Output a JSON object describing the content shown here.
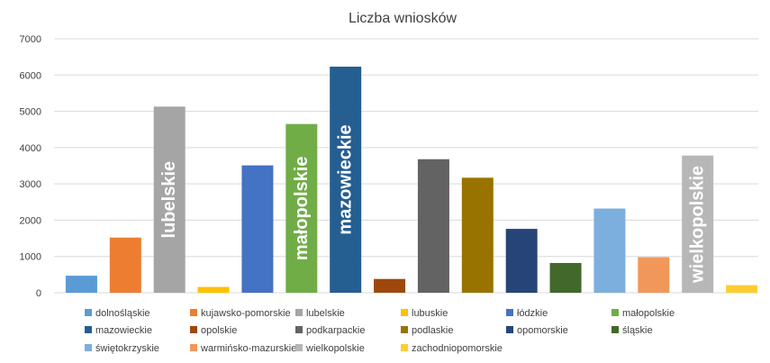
{
  "chart_data": {
    "type": "bar",
    "title": "Liczba wniosków",
    "xlabel": "",
    "ylabel": "",
    "ylim": [
      0,
      7000
    ],
    "yticks": [
      0,
      1000,
      2000,
      3000,
      4000,
      5000,
      6000,
      7000
    ],
    "grid": true,
    "legend_position": "bottom",
    "categories": [
      "dolnośląskie",
      "kujawsko-pomorskie",
      "lubelskie",
      "lubuskie",
      "łódzkie",
      "małopolskie",
      "mazowieckie",
      "opolskie",
      "podkarpackie",
      "podlaskie",
      "opomorskie",
      "śląskie",
      "świętokrzyskie",
      "warmińsko-mazurskie",
      "wielkopolskie",
      "zachodniopomorskie"
    ],
    "values": [
      470,
      1520,
      5130,
      160,
      3510,
      4650,
      6230,
      380,
      3680,
      3170,
      1760,
      820,
      2320,
      980,
      3780,
      210
    ],
    "colors": [
      "#5b9bd5",
      "#ed7d31",
      "#a5a5a5",
      "#ffc000",
      "#4472c4",
      "#70ad47",
      "#255e91",
      "#9e480e",
      "#636363",
      "#997300",
      "#264478",
      "#43682b",
      "#7cafdd",
      "#f1975a",
      "#b7b7b7",
      "#ffcd33"
    ],
    "bar_labels": [
      {
        "category_index": 2,
        "text": "lubelskie"
      },
      {
        "category_index": 5,
        "text": "małopolskie"
      },
      {
        "category_index": 6,
        "text": "mazowieckie"
      },
      {
        "category_index": 14,
        "text": "wielkopolskie"
      }
    ]
  }
}
